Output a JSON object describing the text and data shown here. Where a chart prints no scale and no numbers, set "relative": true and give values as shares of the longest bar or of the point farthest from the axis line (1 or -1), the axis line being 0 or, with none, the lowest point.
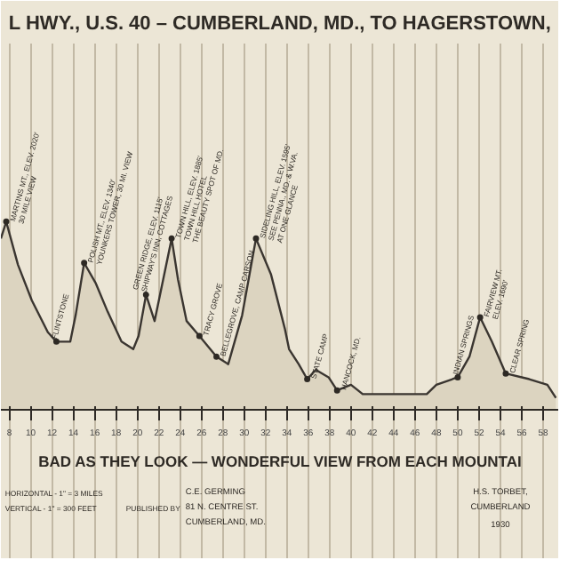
{
  "chart_data": {
    "type": "area",
    "title": "L HWY., U.S. 40 – CUMBERLAND, MD., TO HAGERSTOWN,",
    "relative": true,
    "color": "#3a3530",
    "grid": "x",
    "marker": "none",
    "x": [
      7.2,
      7.7,
      8.8,
      10.1,
      11.6,
      12.4,
      13.7,
      14.2,
      15.0,
      16.1,
      17.2,
      18.5,
      19.6,
      20.1,
      20.8,
      21.6,
      23.2,
      23.8,
      24.6,
      25.8,
      27.4,
      28.5,
      29.8,
      31.1,
      32.5,
      33.8,
      34.2,
      35.1,
      35.9,
      36.7,
      37.9,
      38.7,
      40.0,
      41.1,
      43.8,
      47.1,
      48.0,
      50.0,
      51.1,
      52.1,
      53.2,
      54.5,
      56.7,
      58.4,
      59.2
    ],
    "values": [
      0.91,
      1.0,
      0.77,
      0.58,
      0.41,
      0.36,
      0.36,
      0.5,
      0.78,
      0.67,
      0.52,
      0.36,
      0.32,
      0.39,
      0.61,
      0.47,
      0.91,
      0.69,
      0.47,
      0.39,
      0.28,
      0.24,
      0.5,
      0.91,
      0.72,
      0.43,
      0.32,
      0.24,
      0.16,
      0.21,
      0.17,
      0.1,
      0.13,
      0.08,
      0.08,
      0.08,
      0.13,
      0.17,
      0.28,
      0.49,
      0.36,
      0.19,
      0.16,
      0.13,
      0.06
    ],
    "xlim": [
      7.2,
      59.5
    ],
    "xticks": [
      8,
      10,
      12,
      14,
      16,
      18,
      20,
      22,
      24,
      26,
      28,
      30,
      32,
      34,
      36,
      38,
      40,
      42,
      44,
      46,
      48,
      50,
      52,
      54,
      56,
      58
    ],
    "annotations": [
      {
        "text": "MARTINS MT., ELEV. 2020'\n30 MILE VIEW",
        "x": 7.7,
        "y": 1.0
      },
      {
        "text": "FLINTSTONE",
        "x": 12.4,
        "y": 0.36
      },
      {
        "text": "POLISH MT., ELEV. 1340'\nYOUNKERS TOWER, 30 MI. VIEW",
        "x": 15.0,
        "y": 0.78
      },
      {
        "text": "GREEN RIDGE, ELEV. 1115'\nSHIPWAY'S INN, COTTAGES",
        "x": 20.8,
        "y": 0.61
      },
      {
        "text": "TOWN HILL, ELEV. 1885'\nTOWN HILL HOTEL\nTHE BEAUTY SPOT OF MD.",
        "x": 23.2,
        "y": 0.91
      },
      {
        "text": "TRACY GROVE",
        "x": 25.8,
        "y": 0.39
      },
      {
        "text": "BELLEGROVE, CAMP CARSON",
        "x": 27.4,
        "y": 0.28
      },
      {
        "text": "SIDELING HILL, ELEV. 1595'\nSEE PENNA., MD. & W.VA.\nAT ONE GLANCE",
        "x": 31.1,
        "y": 0.91
      },
      {
        "text": "STATE CAMP",
        "x": 35.9,
        "y": 0.16
      },
      {
        "text": "HANCOCK, MD.",
        "x": 38.7,
        "y": 0.1
      },
      {
        "text": "INDIAN SPRINGS",
        "x": 50.0,
        "y": 0.17
      },
      {
        "text": "FAIRVIEW MT.\nELEV. 1690'",
        "x": 52.1,
        "y": 0.49
      },
      {
        "text": "CLEAR SPRING",
        "x": 54.5,
        "y": 0.19
      },
      "BAD AS THEY LOOK — WONDERFUL VIEW FROM EACH MOUNTAI",
      "HORIZONTAL - 1\" = 3 MILES",
      "VERTICAL - 1\" = 300 FEET",
      "PUBLISHED BY",
      "C.E. GERMING",
      "81 N. CENTRE ST.",
      "CUMBERLAND, MD.",
      "H.S. TORBET,",
      "CUMBERLAND",
      "1930"
    ]
  }
}
